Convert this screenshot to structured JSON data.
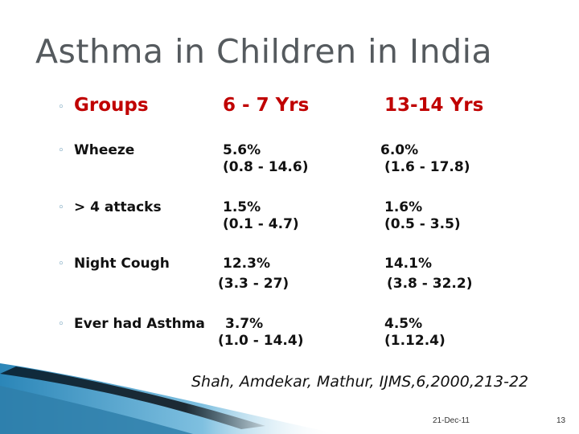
{
  "title": "Asthma in Children in India",
  "header": {
    "label": "Groups",
    "col1": "6 - 7 Yrs",
    "col2": "13-14 Yrs"
  },
  "rows": [
    {
      "label": "Wheeze",
      "c1_value": "5.6%",
      "c1_range": "(0.8 - 14.6)",
      "c2_value": "6.0%",
      "c2_range": "(1.6 - 17.8)"
    },
    {
      "label": "> 4 attacks",
      "c1_value": "1.5%",
      "c1_range": "(0.1 - 4.7)",
      "c2_value": "1.6%",
      "c2_range": "(0.5 - 3.5)"
    },
    {
      "label": "Night Cough",
      "c1_value": "12.3%",
      "c1_range": "(3.3 - 27)",
      "c2_value": "14.1%",
      "c2_range": "(3.8 - 32.2)"
    },
    {
      "label": "Ever had Asthma",
      "c1_value": "3.7%",
      "c1_range": "(1.0 - 14.4)",
      "c2_value": "4.5%",
      "c2_range": "(1.12.4)"
    }
  ],
  "citation": "Shah, Amdekar, Mathur, IJMS,6,2000,213-22",
  "footer": {
    "date": "21-Dec-11",
    "page": "13"
  },
  "colors": {
    "title": "#555a5e",
    "header": "#c00000",
    "bullet": "#4a86a8",
    "swoosh_dark": "#1d2a33",
    "swoosh_blue": "#3b8fc0"
  }
}
